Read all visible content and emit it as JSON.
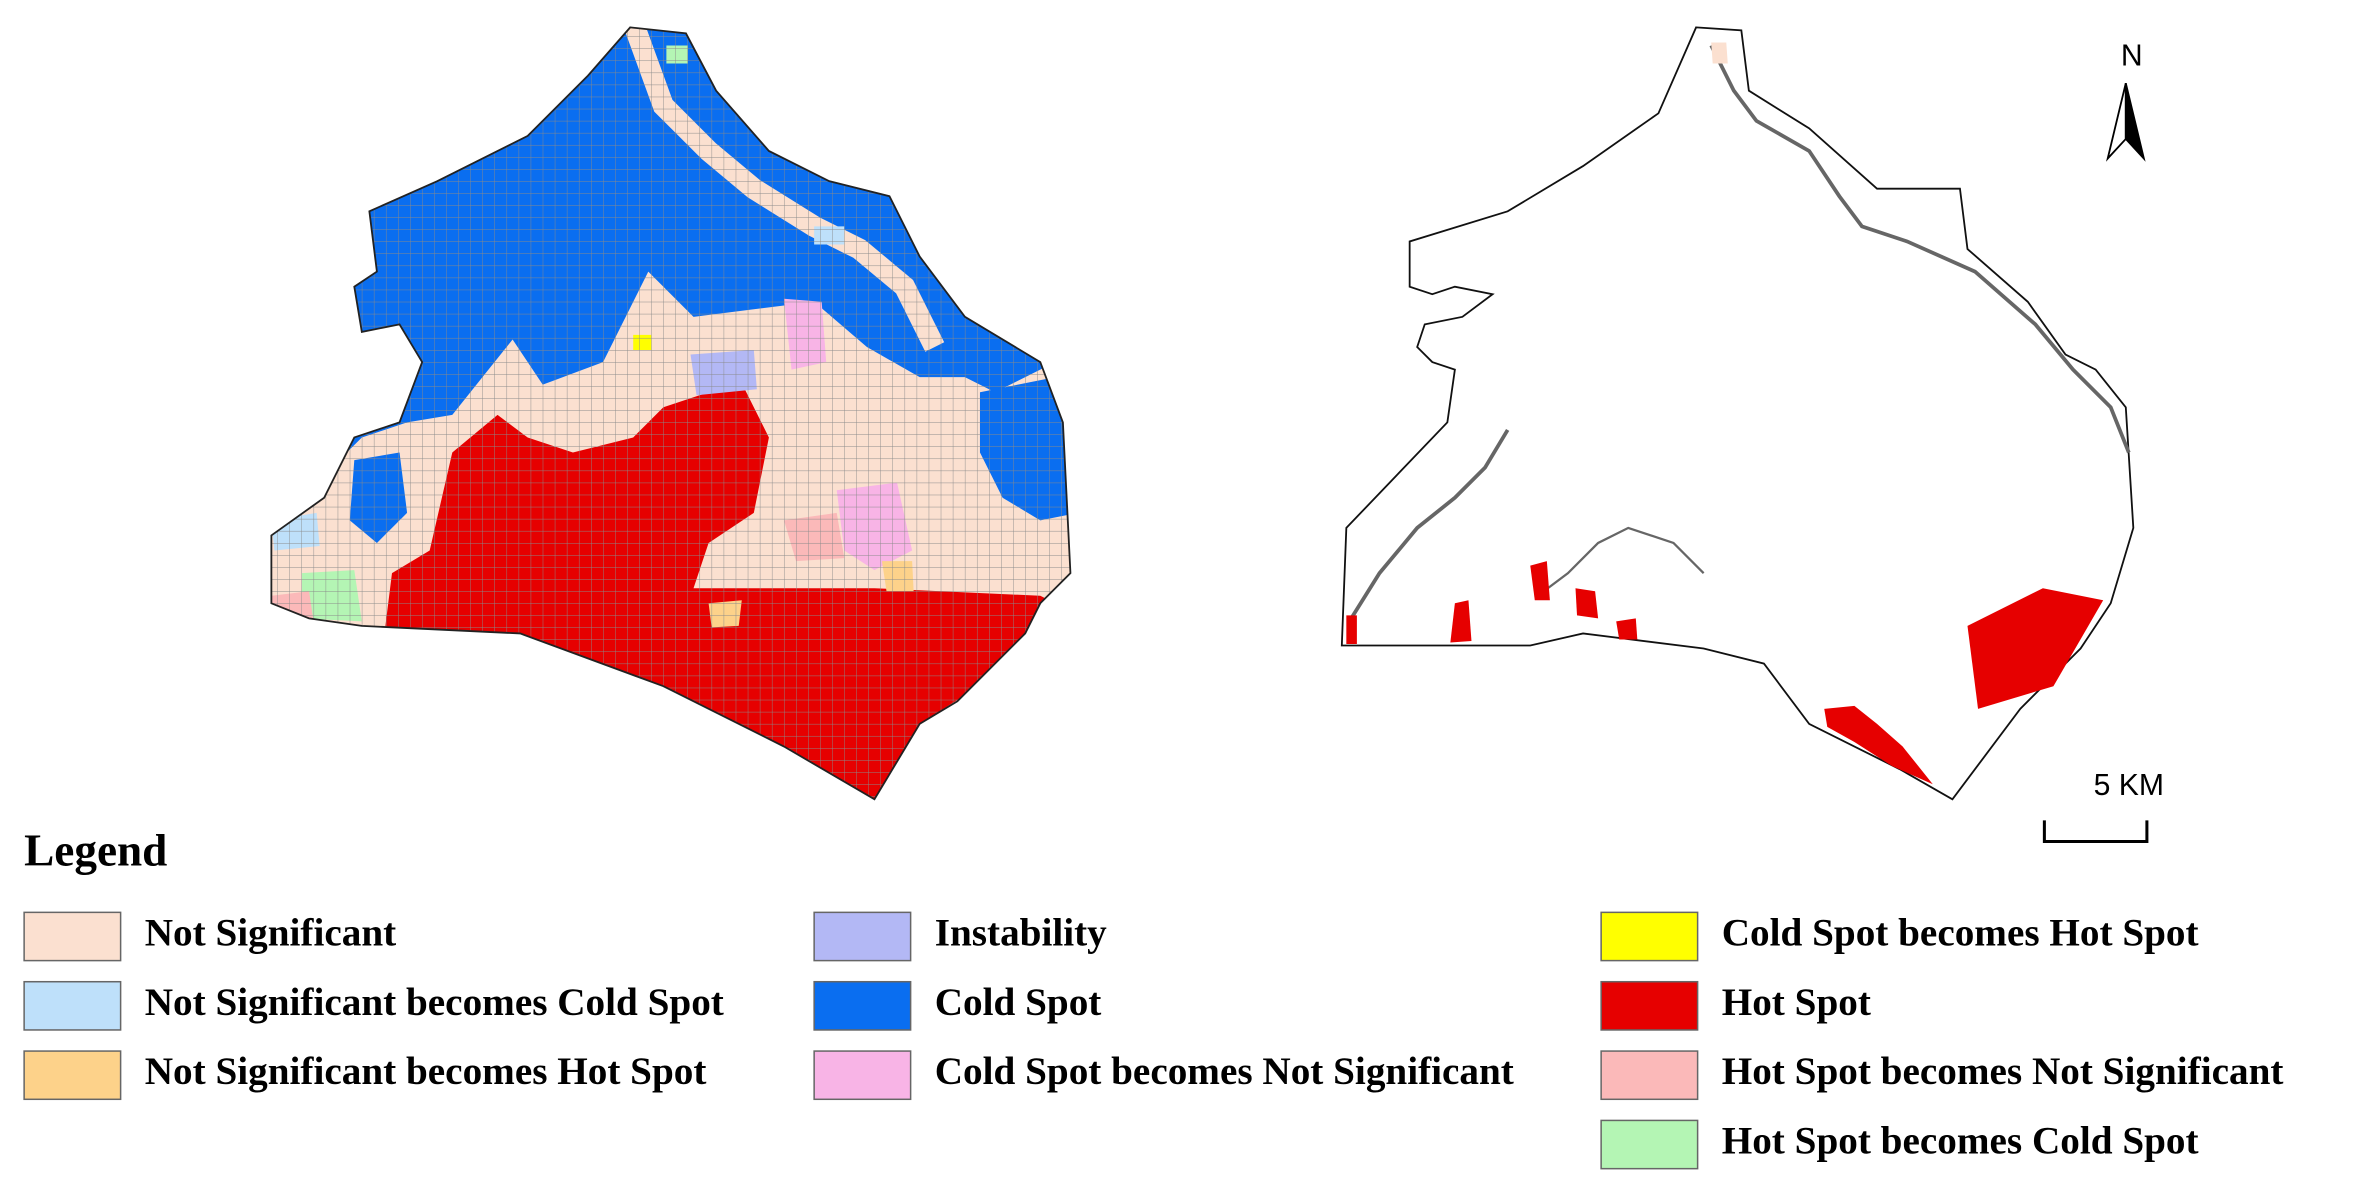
{
  "legend": {
    "title": "Legend",
    "items": [
      {
        "label": "Not Significant",
        "color": "#fbe0d0"
      },
      {
        "label": "Not Significant becomes Cold Spot",
        "color": "#bee0fa"
      },
      {
        "label": "Not Significant becomes Hot Spot",
        "color": "#fdd28a"
      },
      {
        "label": "Instability",
        "color": "#b3b8f5"
      },
      {
        "label": "Cold Spot",
        "color": "#0a6ef0"
      },
      {
        "label": "Cold Spot becomes Not Significant",
        "color": "#f8b4e6"
      },
      {
        "label": "Cold Spot becomes Hot Spot",
        "color": "#ffff00"
      },
      {
        "label": "Hot Spot",
        "color": "#e60000"
      },
      {
        "label": "Hot Spot becomes Not Significant",
        "color": "#fbb9b9"
      },
      {
        "label": "Hot Spot becomes Cold Spot",
        "color": "#b4f5b4"
      }
    ]
  },
  "north_label": "N",
  "scale_label": "5 KM"
}
